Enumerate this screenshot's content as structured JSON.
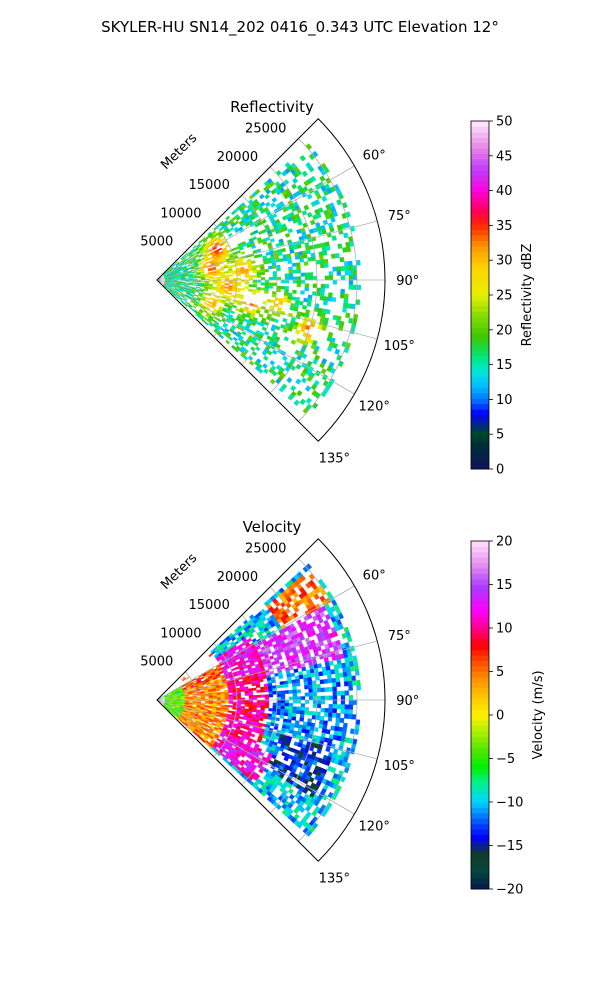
{
  "figure": {
    "suptitle": "SKYLER-HU  SN14_202  0416_0.343 UTC Elevation 12°"
  },
  "chart_data": [
    {
      "type": "heatmap",
      "projection": "polar-sector",
      "title": "Reflectivity",
      "radial_label": "Meters",
      "radial_ticks": [
        5000,
        10000,
        15000,
        20000,
        25000
      ],
      "r_max": 28500,
      "angle_range_deg": [
        45,
        135
      ],
      "angle_ticks": [
        60,
        75,
        90,
        105,
        120,
        135
      ],
      "angle_tick_labels": [
        "60°",
        "75°",
        "90°",
        "105°",
        "120°",
        "135°"
      ],
      "grid": true,
      "colorbar": {
        "label": "Reflectivity dBZ",
        "range": [
          0,
          50
        ],
        "ticks": [
          0,
          5,
          10,
          15,
          20,
          25,
          30,
          35,
          40,
          45,
          50
        ],
        "colormap": "HomeyerRainbow"
      },
      "field_description": "scattered echoes mostly 15-25 dBZ with embedded cores of 30-38 dBZ",
      "cells": [
        {
          "az": 63,
          "r": 8500,
          "value": 36
        },
        {
          "az": 78,
          "r": 7000,
          "value": 34
        },
        {
          "az": 83,
          "r": 11000,
          "value": 32
        },
        {
          "az": 95,
          "r": 9000,
          "value": 33
        },
        {
          "az": 103,
          "r": 12000,
          "value": 35
        },
        {
          "az": 108,
          "r": 20000,
          "value": 34
        },
        {
          "az": 113,
          "r": 7500,
          "value": 31
        },
        {
          "az": 101,
          "r": 15500,
          "value": 30
        }
      ],
      "coverage": {
        "az_min": 48,
        "az_max": 131,
        "r_max": 25500
      }
    },
    {
      "type": "heatmap",
      "projection": "polar-sector",
      "title": "Velocity",
      "radial_label": "Meters",
      "radial_ticks": [
        5000,
        10000,
        15000,
        20000,
        25000
      ],
      "r_max": 28500,
      "angle_range_deg": [
        45,
        135
      ],
      "angle_ticks": [
        60,
        75,
        90,
        105,
        120,
        135
      ],
      "angle_tick_labels": [
        "60°",
        "75°",
        "90°",
        "105°",
        "120°",
        "135°"
      ],
      "grid": true,
      "colorbar": {
        "label": "Velocity (m/s)",
        "range": [
          -20,
          20
        ],
        "ticks": [
          -20,
          -15,
          -10,
          -5,
          0,
          5,
          10,
          15,
          20
        ],
        "colormap": "NWSVel"
      },
      "field_description": "near-radar positive velocities (2-12 m/s) transitioning to negative (-8 to -15 m/s) at far range, aliased magenta bands 12-15 m/s near top",
      "regions": [
        {
          "az_min": 45,
          "az_max": 135,
          "r_min": 0,
          "r_max": 3500,
          "value": -4
        },
        {
          "az_min": 70,
          "az_max": 130,
          "r_min": 3500,
          "r_max": 9000,
          "value": 4
        },
        {
          "az_min": 55,
          "az_max": 75,
          "r_min": 9000,
          "r_max": 14000,
          "value": 12
        },
        {
          "az_min": 75,
          "az_max": 115,
          "r_min": 9000,
          "r_max": 14000,
          "value": 10
        },
        {
          "az_min": 115,
          "az_max": 130,
          "r_min": 9000,
          "r_max": 16000,
          "value": 12
        },
        {
          "az_min": 50,
          "az_max": 60,
          "r_min": 18000,
          "r_max": 25000,
          "value": 5
        },
        {
          "az_min": 60,
          "az_max": 78,
          "r_min": 14000,
          "r_max": 24000,
          "value": 14
        },
        {
          "az_min": 78,
          "az_max": 105,
          "r_min": 14000,
          "r_max": 24000,
          "value": -11
        },
        {
          "az_min": 105,
          "az_max": 122,
          "r_min": 16000,
          "r_max": 23000,
          "value": -14
        }
      ],
      "coverage": {
        "az_min": 48,
        "az_max": 131,
        "r_max": 25500
      }
    }
  ]
}
